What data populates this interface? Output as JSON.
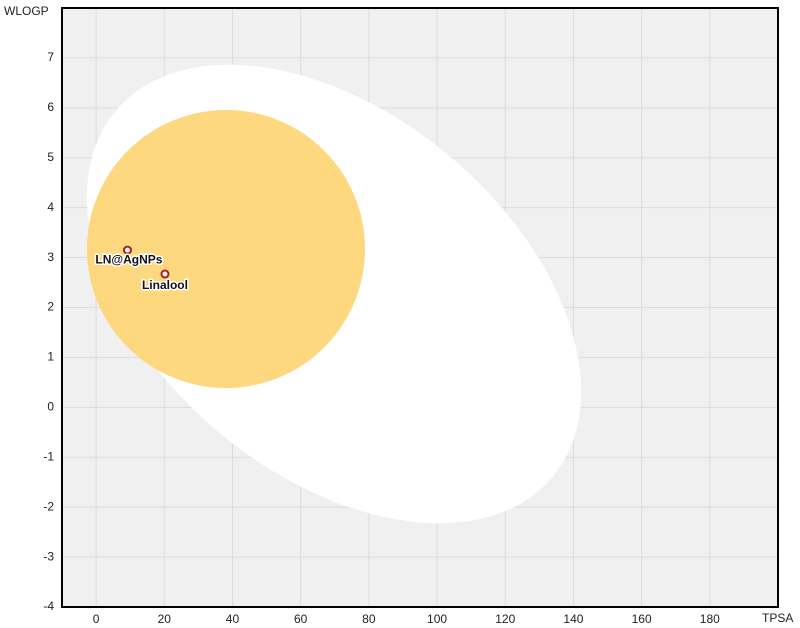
{
  "chart_data": {
    "type": "scatter",
    "x_label": "TPSA",
    "y_label": "WLOGP",
    "xlim": [
      -10,
      200
    ],
    "ylim": [
      -4,
      8
    ],
    "xticks": [
      0,
      20,
      40,
      60,
      80,
      100,
      120,
      140,
      160,
      180
    ],
    "yticks": [
      -4,
      -3,
      -2,
      -1,
      0,
      1,
      2,
      3,
      4,
      5,
      6,
      7
    ],
    "grid": true,
    "series": [
      {
        "color": "#b01c1c",
        "x": [
          9.2,
          20.2
        ],
        "values": [
          3.15,
          2.67
        ],
        "labels": [
          "LN@AgNPs",
          "Linalool"
        ]
      }
    ]
  }
}
